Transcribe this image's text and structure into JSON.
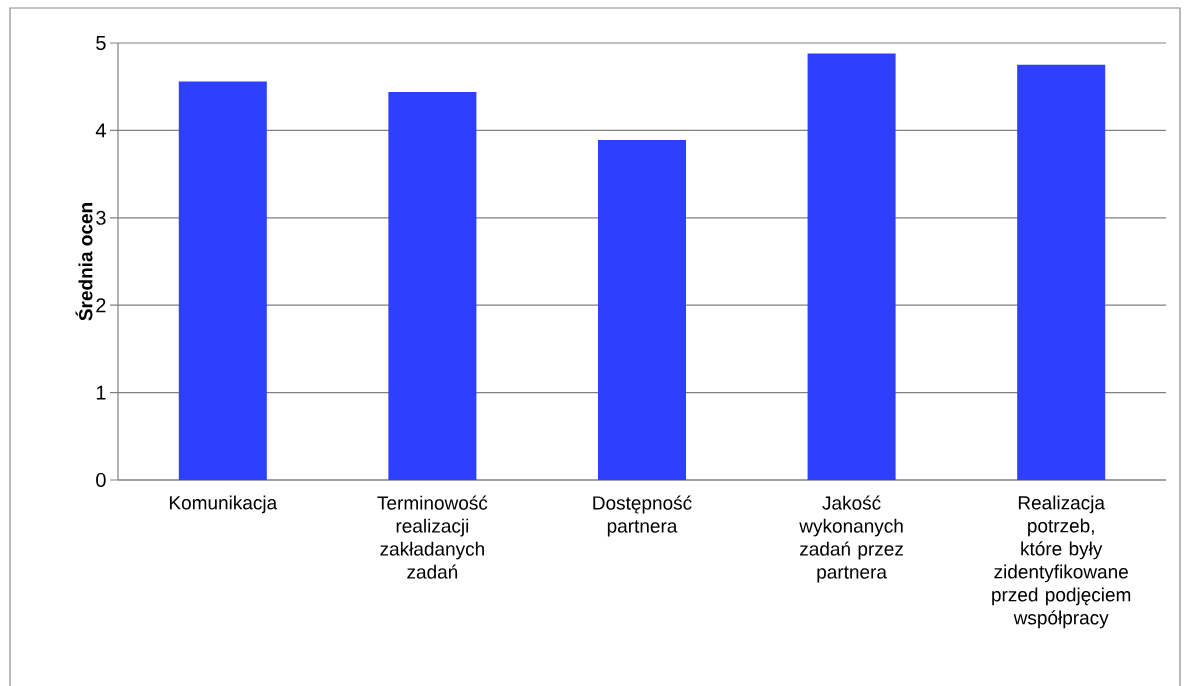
{
  "chart_data": {
    "type": "bar",
    "ylabel": "Średnia ocen",
    "categories": [
      "Komunikacja",
      "Terminowość realizacji zakładanych zadań",
      "Dostępność partnera",
      "Jakość wykonanych zadań przez partnera",
      "Realizacja potrzeb, które były zidentyfikowane przed podjęciem współpracy"
    ],
    "values": [
      4.56,
      4.44,
      3.89,
      4.88,
      4.75
    ],
    "color": "#2e40fd",
    "ylim": [
      0,
      5
    ],
    "yticks": [
      0,
      1,
      2,
      3,
      4,
      5
    ],
    "grid": "y"
  }
}
